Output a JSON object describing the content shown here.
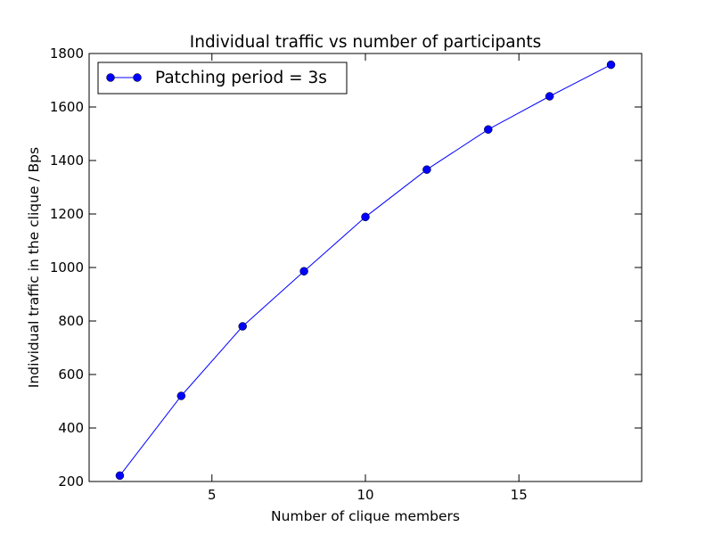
{
  "chart_data": {
    "type": "line",
    "title": "Individual traffic vs number of participants",
    "xlabel": "Number of clique members",
    "ylabel": "Individual traffic in the clique / Bps",
    "xlim": [
      1,
      19
    ],
    "ylim": [
      200,
      1800
    ],
    "xticks": [
      5,
      10,
      15
    ],
    "yticks": [
      200,
      400,
      600,
      800,
      1000,
      1200,
      1400,
      1600,
      1800
    ],
    "grid": false,
    "legend_position": "top-left",
    "series": [
      {
        "name": "Patching period = 3s",
        "color": "#0000ff",
        "marker": "circle",
        "x": [
          2,
          4,
          6,
          8,
          10,
          12,
          14,
          16,
          18
        ],
        "y": [
          222,
          520,
          780,
          986,
          1189,
          1366,
          1516,
          1640,
          1758
        ]
      }
    ]
  }
}
